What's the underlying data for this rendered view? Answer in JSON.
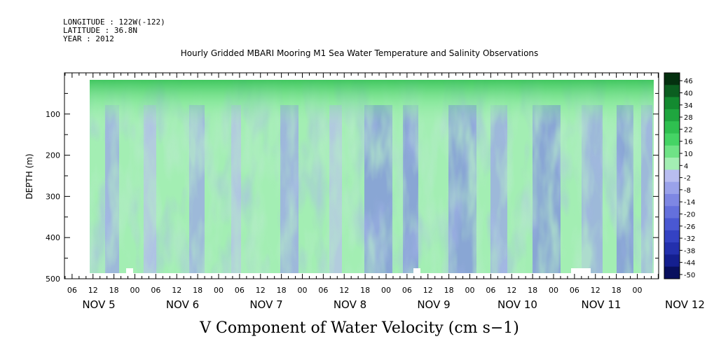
{
  "header": {
    "longitude": "LONGITUDE : 122W(-122)",
    "latitude": "LATITUDE : 36.8N",
    "year": "YEAR : 2012"
  },
  "chart_data": {
    "type": "heatmap",
    "title": "Hourly Gridded MBARI Mooring M1 Sea Water Temperature and Salinity Observations",
    "xlabel": "V Component of Water Velocity (cm s−1)",
    "ylabel": "DEPTH (m)",
    "y_ticks": [
      100,
      200,
      300,
      400,
      500
    ],
    "ylim": [
      500,
      0
    ],
    "y_data_range": [
      20,
      485
    ],
    "x_hour_labels": [
      "06",
      "12",
      "18",
      "00",
      "06",
      "12",
      "18",
      "00",
      "06",
      "12",
      "18",
      "00",
      "06",
      "12",
      "18",
      "00",
      "06",
      "12",
      "18",
      "00",
      "06",
      "12",
      "18",
      "00",
      "06",
      "12",
      "18",
      "00"
    ],
    "x_date_labels": [
      "NOV  5",
      "NOV  6",
      "NOV  7",
      "NOV  8",
      "NOV  9",
      "NOV 10",
      "NOV 11",
      "NOV 12"
    ],
    "x_range_hours": [
      "2012-11-05T00:00",
      "2012-11-12T06:00"
    ],
    "data_start": "2012-11-05T11:00",
    "data_end": "2012-11-12T05:00",
    "colorbar": {
      "levels": [
        46,
        40,
        34,
        28,
        22,
        16,
        10,
        4,
        -2,
        -8,
        -14,
        -20,
        -26,
        -32,
        -38,
        -44,
        -50
      ],
      "colors": [
        "#04300f",
        "#0b5e20",
        "#138a30",
        "#1fa63f",
        "#2fc050",
        "#45d465",
        "#6fe386",
        "#a3eeb3",
        "#b8bdf0",
        "#9aa2ea",
        "#7e87e3",
        "#6470dc",
        "#4a58d2",
        "#3442c3",
        "#2330ad",
        "#141f8f",
        "#080f5e"
      ]
    },
    "grid": false
  }
}
